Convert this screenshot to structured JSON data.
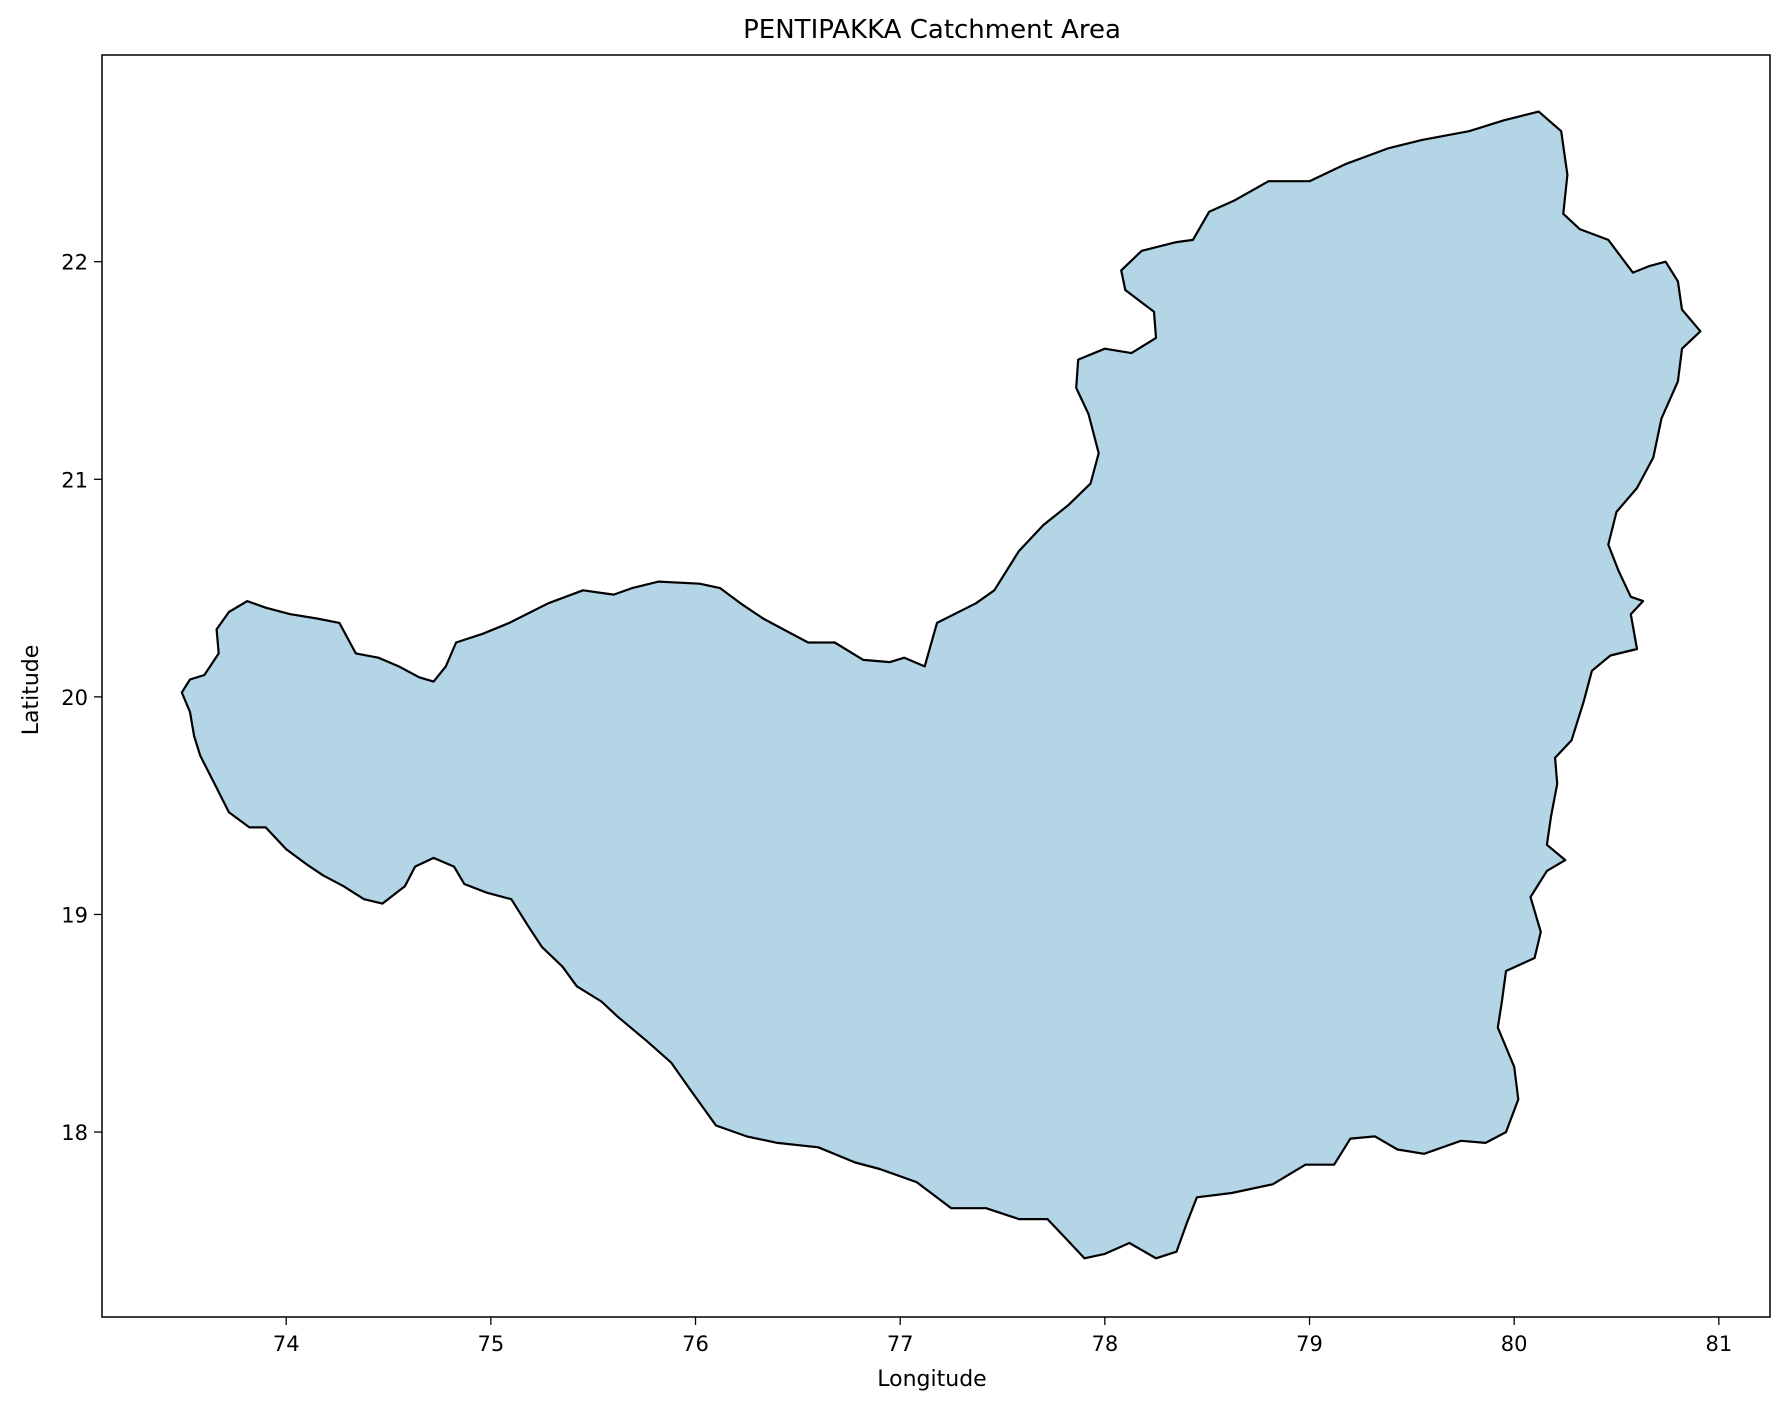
{
  "chart_data": {
    "type": "map",
    "title": "PENTIPAKKA Catchment Area",
    "xlabel": "Longitude",
    "ylabel": "Latitude",
    "xlim": [
      73.1,
      81.25
    ],
    "ylim": [
      17.15,
      22.95
    ],
    "xticks": [
      74,
      75,
      76,
      77,
      78,
      79,
      80,
      81
    ],
    "yticks": [
      18,
      19,
      20,
      21,
      22
    ],
    "grid": false,
    "fill_color": "#b3d5e6",
    "edge_color": "#000000",
    "region": {
      "name": "PENTIPAKKA",
      "outline": [
        [
          73.53,
          19.93
        ],
        [
          73.49,
          20.02
        ],
        [
          73.53,
          20.08
        ],
        [
          73.6,
          20.1
        ],
        [
          73.67,
          20.2
        ],
        [
          73.66,
          20.31
        ],
        [
          73.72,
          20.39
        ],
        [
          73.81,
          20.44
        ],
        [
          73.9,
          20.41
        ],
        [
          74.02,
          20.38
        ],
        [
          74.15,
          20.36
        ],
        [
          74.26,
          20.34
        ],
        [
          74.34,
          20.2
        ],
        [
          74.45,
          20.18
        ],
        [
          74.55,
          20.14
        ],
        [
          74.65,
          20.09
        ],
        [
          74.72,
          20.07
        ],
        [
          74.78,
          20.14
        ],
        [
          74.83,
          20.25
        ],
        [
          74.96,
          20.29
        ],
        [
          75.09,
          20.34
        ],
        [
          75.28,
          20.43
        ],
        [
          75.45,
          20.49
        ],
        [
          75.6,
          20.47
        ],
        [
          75.69,
          20.5
        ],
        [
          75.82,
          20.53
        ],
        [
          76.02,
          20.52
        ],
        [
          76.12,
          20.5
        ],
        [
          76.22,
          20.43
        ],
        [
          76.33,
          20.36
        ],
        [
          76.45,
          20.3
        ],
        [
          76.55,
          20.25
        ],
        [
          76.68,
          20.25
        ],
        [
          76.82,
          20.17
        ],
        [
          76.95,
          20.16
        ],
        [
          77.02,
          20.18
        ],
        [
          77.12,
          20.14
        ],
        [
          77.18,
          20.34
        ],
        [
          77.37,
          20.43
        ],
        [
          77.46,
          20.49
        ],
        [
          77.58,
          20.67
        ],
        [
          77.7,
          20.79
        ],
        [
          77.82,
          20.88
        ],
        [
          77.93,
          20.98
        ],
        [
          77.97,
          21.12
        ],
        [
          77.92,
          21.3
        ],
        [
          77.86,
          21.42
        ],
        [
          77.87,
          21.55
        ],
        [
          78.0,
          21.6
        ],
        [
          78.13,
          21.58
        ],
        [
          78.25,
          21.65
        ],
        [
          78.24,
          21.77
        ],
        [
          78.1,
          21.87
        ],
        [
          78.08,
          21.96
        ],
        [
          78.18,
          22.05
        ],
        [
          78.35,
          22.09
        ],
        [
          78.43,
          22.1
        ],
        [
          78.51,
          22.23
        ],
        [
          78.63,
          22.28
        ],
        [
          78.8,
          22.37
        ],
        [
          79.0,
          22.37
        ],
        [
          79.18,
          22.45
        ],
        [
          79.38,
          22.52
        ],
        [
          79.55,
          22.56
        ],
        [
          79.78,
          22.6
        ],
        [
          79.95,
          22.65
        ],
        [
          80.12,
          22.69
        ],
        [
          80.23,
          22.6
        ],
        [
          80.26,
          22.4
        ],
        [
          80.24,
          22.22
        ],
        [
          80.32,
          22.15
        ],
        [
          80.46,
          22.1
        ],
        [
          80.58,
          21.95
        ],
        [
          80.66,
          21.98
        ],
        [
          80.74,
          22.0
        ],
        [
          80.8,
          21.91
        ],
        [
          80.82,
          21.78
        ],
        [
          80.91,
          21.68
        ],
        [
          80.82,
          21.6
        ],
        [
          80.8,
          21.45
        ],
        [
          80.72,
          21.28
        ],
        [
          80.68,
          21.1
        ],
        [
          80.6,
          20.96
        ],
        [
          80.5,
          20.85
        ],
        [
          80.46,
          20.7
        ],
        [
          80.51,
          20.58
        ],
        [
          80.57,
          20.46
        ],
        [
          80.63,
          20.44
        ],
        [
          80.57,
          20.38
        ],
        [
          80.6,
          20.22
        ],
        [
          80.47,
          20.19
        ],
        [
          80.38,
          20.12
        ],
        [
          80.34,
          19.98
        ],
        [
          80.28,
          19.8
        ],
        [
          80.2,
          19.72
        ],
        [
          80.21,
          19.6
        ],
        [
          80.18,
          19.45
        ],
        [
          80.16,
          19.32
        ],
        [
          80.25,
          19.25
        ],
        [
          80.16,
          19.2
        ],
        [
          80.08,
          19.08
        ],
        [
          80.13,
          18.92
        ],
        [
          80.1,
          18.8
        ],
        [
          79.96,
          18.74
        ],
        [
          79.94,
          18.6
        ],
        [
          79.92,
          18.48
        ],
        [
          80.0,
          18.3
        ],
        [
          80.02,
          18.15
        ],
        [
          79.96,
          18.0
        ],
        [
          79.86,
          17.95
        ],
        [
          79.74,
          17.96
        ],
        [
          79.56,
          17.9
        ],
        [
          79.43,
          17.92
        ],
        [
          79.32,
          17.98
        ],
        [
          79.2,
          17.97
        ],
        [
          79.12,
          17.85
        ],
        [
          78.98,
          17.85
        ],
        [
          78.82,
          17.76
        ],
        [
          78.62,
          17.72
        ],
        [
          78.45,
          17.7
        ],
        [
          78.4,
          17.58
        ],
        [
          78.35,
          17.45
        ],
        [
          78.25,
          17.42
        ],
        [
          78.12,
          17.49
        ],
        [
          78.0,
          17.44
        ],
        [
          77.9,
          17.42
        ],
        [
          77.82,
          17.5
        ],
        [
          77.72,
          17.6
        ],
        [
          77.58,
          17.6
        ],
        [
          77.42,
          17.65
        ],
        [
          77.25,
          17.65
        ],
        [
          77.08,
          17.77
        ],
        [
          76.9,
          17.83
        ],
        [
          76.78,
          17.86
        ],
        [
          76.6,
          17.93
        ],
        [
          76.4,
          17.95
        ],
        [
          76.25,
          17.98
        ],
        [
          76.1,
          18.03
        ],
        [
          75.97,
          18.2
        ],
        [
          75.88,
          18.32
        ],
        [
          75.76,
          18.42
        ],
        [
          75.62,
          18.53
        ],
        [
          75.54,
          18.6
        ],
        [
          75.42,
          18.67
        ],
        [
          75.35,
          18.76
        ],
        [
          75.25,
          18.85
        ],
        [
          75.18,
          18.95
        ],
        [
          75.1,
          19.07
        ],
        [
          74.98,
          19.1
        ],
        [
          74.87,
          19.14
        ],
        [
          74.82,
          19.22
        ],
        [
          74.72,
          19.26
        ],
        [
          74.63,
          19.22
        ],
        [
          74.58,
          19.13
        ],
        [
          74.47,
          19.05
        ],
        [
          74.38,
          19.07
        ],
        [
          74.28,
          19.13
        ],
        [
          74.18,
          19.18
        ],
        [
          74.1,
          19.23
        ],
        [
          74.0,
          19.3
        ],
        [
          73.9,
          19.4
        ],
        [
          73.82,
          19.4
        ],
        [
          73.72,
          19.47
        ],
        [
          73.65,
          19.6
        ],
        [
          73.58,
          19.73
        ],
        [
          73.55,
          19.82
        ]
      ]
    }
  }
}
